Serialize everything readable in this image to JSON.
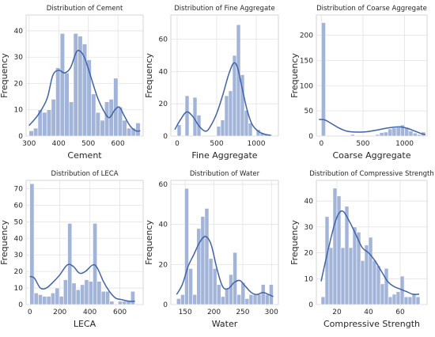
{
  "chart_data": [
    {
      "type": "bar",
      "title": "Distribution of Cement",
      "xlabel": "Cement",
      "ylabel": "Frequency",
      "xlim": [
        290,
        685
      ],
      "ylim": [
        0,
        46
      ],
      "xticks": [
        300,
        400,
        500,
        600
      ],
      "yticks": [
        0,
        10,
        20,
        30,
        40
      ],
      "bin_edges": [
        300,
        315,
        330,
        345,
        360,
        375,
        390,
        405,
        420,
        435,
        450,
        465,
        480,
        495,
        510,
        525,
        540,
        555,
        570,
        585,
        600,
        615,
        630,
        645,
        660,
        675
      ],
      "counts": [
        2,
        3,
        10,
        9,
        10,
        14,
        26,
        39,
        24,
        13,
        39,
        38,
        35,
        29,
        16,
        9,
        6,
        13,
        14,
        22,
        11,
        6,
        3,
        3,
        5
      ],
      "kde": [
        [
          300,
          4
        ],
        [
          330,
          8
        ],
        [
          360,
          14
        ],
        [
          380,
          23
        ],
        [
          400,
          25
        ],
        [
          420,
          24
        ],
        [
          440,
          26
        ],
        [
          460,
          32
        ],
        [
          475,
          32
        ],
        [
          490,
          29
        ],
        [
          510,
          22
        ],
        [
          530,
          15
        ],
        [
          550,
          10
        ],
        [
          570,
          7
        ],
        [
          590,
          10
        ],
        [
          605,
          11
        ],
        [
          620,
          8
        ],
        [
          640,
          4
        ],
        [
          660,
          2
        ],
        [
          675,
          2
        ]
      ]
    },
    {
      "type": "bar",
      "title": "Distribution of Fine Aggregate",
      "xlabel": "Fine Aggregate",
      "ylabel": "Frequency",
      "xlim": [
        -80,
        1280
      ],
      "ylim": [
        0,
        75
      ],
      "xticks": [
        0,
        500,
        1000
      ],
      "yticks": [
        0,
        20,
        40,
        60
      ],
      "bin_edges": [
        0,
        50,
        100,
        150,
        200,
        250,
        300,
        350,
        400,
        450,
        500,
        550,
        600,
        650,
        700,
        750,
        800,
        850,
        900,
        950,
        1000,
        1050,
        1100,
        1150,
        1200,
        1250
      ],
      "counts": [
        7,
        0,
        25,
        0,
        24,
        13,
        0,
        0,
        0,
        0,
        6,
        10,
        25,
        28,
        50,
        69,
        38,
        16,
        8,
        0,
        4,
        2,
        1,
        1,
        0
      ],
      "kde": [
        [
          -30,
          4
        ],
        [
          40,
          10
        ],
        [
          120,
          15
        ],
        [
          200,
          12
        ],
        [
          280,
          6
        ],
        [
          360,
          3
        ],
        [
          420,
          6
        ],
        [
          500,
          14
        ],
        [
          580,
          26
        ],
        [
          650,
          38
        ],
        [
          710,
          45
        ],
        [
          760,
          43
        ],
        [
          820,
          30
        ],
        [
          880,
          17
        ],
        [
          940,
          8
        ],
        [
          1000,
          4
        ],
        [
          1060,
          2
        ],
        [
          1120,
          1
        ],
        [
          1180,
          0.5
        ]
      ]
    },
    {
      "type": "bar",
      "title": "Distribution of Coarse Aggregate",
      "xlabel": "Coarse Aggregate",
      "ylabel": "Frequency",
      "xlim": [
        -60,
        1270
      ],
      "ylim": [
        0,
        240
      ],
      "xticks": [
        0,
        500,
        1000
      ],
      "yticks": [
        0,
        50,
        100,
        150,
        200
      ],
      "bin_edges": [
        0,
        50,
        100,
        150,
        200,
        250,
        300,
        350,
        400,
        450,
        500,
        550,
        600,
        650,
        700,
        750,
        800,
        850,
        900,
        950,
        1000,
        1050,
        1100,
        1150,
        1200,
        1250
      ],
      "counts": [
        225,
        0,
        0,
        0,
        0,
        0,
        0,
        3,
        0,
        0,
        0,
        0,
        0,
        3,
        7,
        8,
        14,
        16,
        17,
        22,
        17,
        10,
        6,
        3,
        8
      ],
      "kde": [
        [
          -30,
          33
        ],
        [
          40,
          32
        ],
        [
          120,
          25
        ],
        [
          200,
          17
        ],
        [
          300,
          10
        ],
        [
          400,
          8
        ],
        [
          500,
          8
        ],
        [
          600,
          10
        ],
        [
          700,
          13
        ],
        [
          800,
          16
        ],
        [
          900,
          18
        ],
        [
          960,
          18
        ],
        [
          1040,
          15
        ],
        [
          1120,
          10
        ],
        [
          1200,
          5
        ],
        [
          1250,
          3
        ]
      ]
    },
    {
      "type": "bar",
      "title": "Distribution of LECA",
      "xlabel": "LECA",
      "ylabel": "Frequency",
      "xlim": [
        -25,
        755
      ],
      "ylim": [
        0,
        75
      ],
      "xticks": [
        0,
        200,
        400,
        600
      ],
      "yticks": [
        0,
        10,
        20,
        30,
        40,
        50,
        60,
        70
      ],
      "bin_edges": [
        0,
        28,
        56,
        84,
        112,
        140,
        168,
        196,
        224,
        252,
        280,
        308,
        336,
        364,
        392,
        420,
        448,
        476,
        504,
        532,
        560,
        588,
        616,
        644,
        672,
        700
      ],
      "counts": [
        73,
        7,
        6,
        5,
        5,
        7,
        10,
        5,
        15,
        49,
        13,
        9,
        12,
        15,
        14,
        49,
        14,
        8,
        8,
        2,
        0,
        2,
        2,
        2,
        8
      ],
      "kde": [
        [
          0,
          17
        ],
        [
          30,
          16
        ],
        [
          70,
          10
        ],
        [
          110,
          10
        ],
        [
          160,
          14
        ],
        [
          200,
          18
        ],
        [
          250,
          24
        ],
        [
          290,
          23
        ],
        [
          330,
          19
        ],
        [
          370,
          20
        ],
        [
          420,
          24
        ],
        [
          450,
          22
        ],
        [
          490,
          14
        ],
        [
          530,
          8
        ],
        [
          570,
          4
        ],
        [
          610,
          3
        ],
        [
          660,
          2
        ],
        [
          700,
          2
        ]
      ]
    },
    {
      "type": "bar",
      "title": "Distribution of Water",
      "xlabel": "Water",
      "ylabel": "Frequency",
      "xlim": [
        125,
        312
      ],
      "ylim": [
        0,
        62
      ],
      "xticks": [
        150,
        200,
        250,
        300
      ],
      "yticks": [
        0,
        20,
        40,
        60
      ],
      "bin_edges": [
        135,
        142,
        149,
        156,
        163,
        170,
        177,
        184,
        191,
        198,
        205,
        212,
        219,
        226,
        233,
        240,
        247,
        254,
        261,
        268,
        275,
        282,
        289,
        296,
        303
      ],
      "counts": [
        3,
        5,
        58,
        18,
        5,
        38,
        44,
        48,
        23,
        18,
        10,
        4,
        8,
        15,
        26,
        5,
        11,
        3,
        5,
        5,
        5,
        10,
        5,
        10
      ],
      "kde": [
        [
          135,
          5
        ],
        [
          145,
          10
        ],
        [
          155,
          19
        ],
        [
          165,
          25
        ],
        [
          175,
          31
        ],
        [
          185,
          34
        ],
        [
          195,
          30
        ],
        [
          205,
          18
        ],
        [
          215,
          9
        ],
        [
          225,
          8
        ],
        [
          235,
          11
        ],
        [
          245,
          12
        ],
        [
          255,
          9
        ],
        [
          265,
          6
        ],
        [
          275,
          5
        ],
        [
          285,
          6
        ],
        [
          295,
          5
        ],
        [
          303,
          4
        ]
      ]
    },
    {
      "type": "bar",
      "title": "Distribution of Compressive Strength",
      "xlabel": "Compressive Strength",
      "ylabel": "Frequency",
      "xlim": [
        7,
        77
      ],
      "ylim": [
        0,
        48
      ],
      "xticks": [
        20,
        40,
        60
      ],
      "yticks": [
        0,
        10,
        20,
        30,
        40
      ],
      "bin_edges": [
        10,
        12.5,
        15,
        17.5,
        20,
        22.5,
        25,
        27.5,
        30,
        32.5,
        35,
        37.5,
        40,
        42.5,
        45,
        47.5,
        50,
        52.5,
        55,
        57.5,
        60,
        62.5,
        65,
        67.5,
        70,
        72.5
      ],
      "counts": [
        3,
        34,
        22,
        45,
        42,
        22,
        38,
        22,
        30,
        28,
        17,
        23,
        26,
        17,
        15,
        8,
        14,
        3,
        4,
        5,
        11,
        3,
        3,
        4,
        3
      ],
      "kde": [
        [
          10,
          9
        ],
        [
          14,
          20
        ],
        [
          18,
          30
        ],
        [
          21,
          35
        ],
        [
          24,
          36
        ],
        [
          28,
          32
        ],
        [
          32,
          27
        ],
        [
          36,
          22
        ],
        [
          40,
          20
        ],
        [
          44,
          17
        ],
        [
          48,
          13
        ],
        [
          52,
          9
        ],
        [
          56,
          7
        ],
        [
          60,
          6
        ],
        [
          64,
          5
        ],
        [
          68,
          4
        ],
        [
          72,
          4
        ]
      ]
    }
  ]
}
